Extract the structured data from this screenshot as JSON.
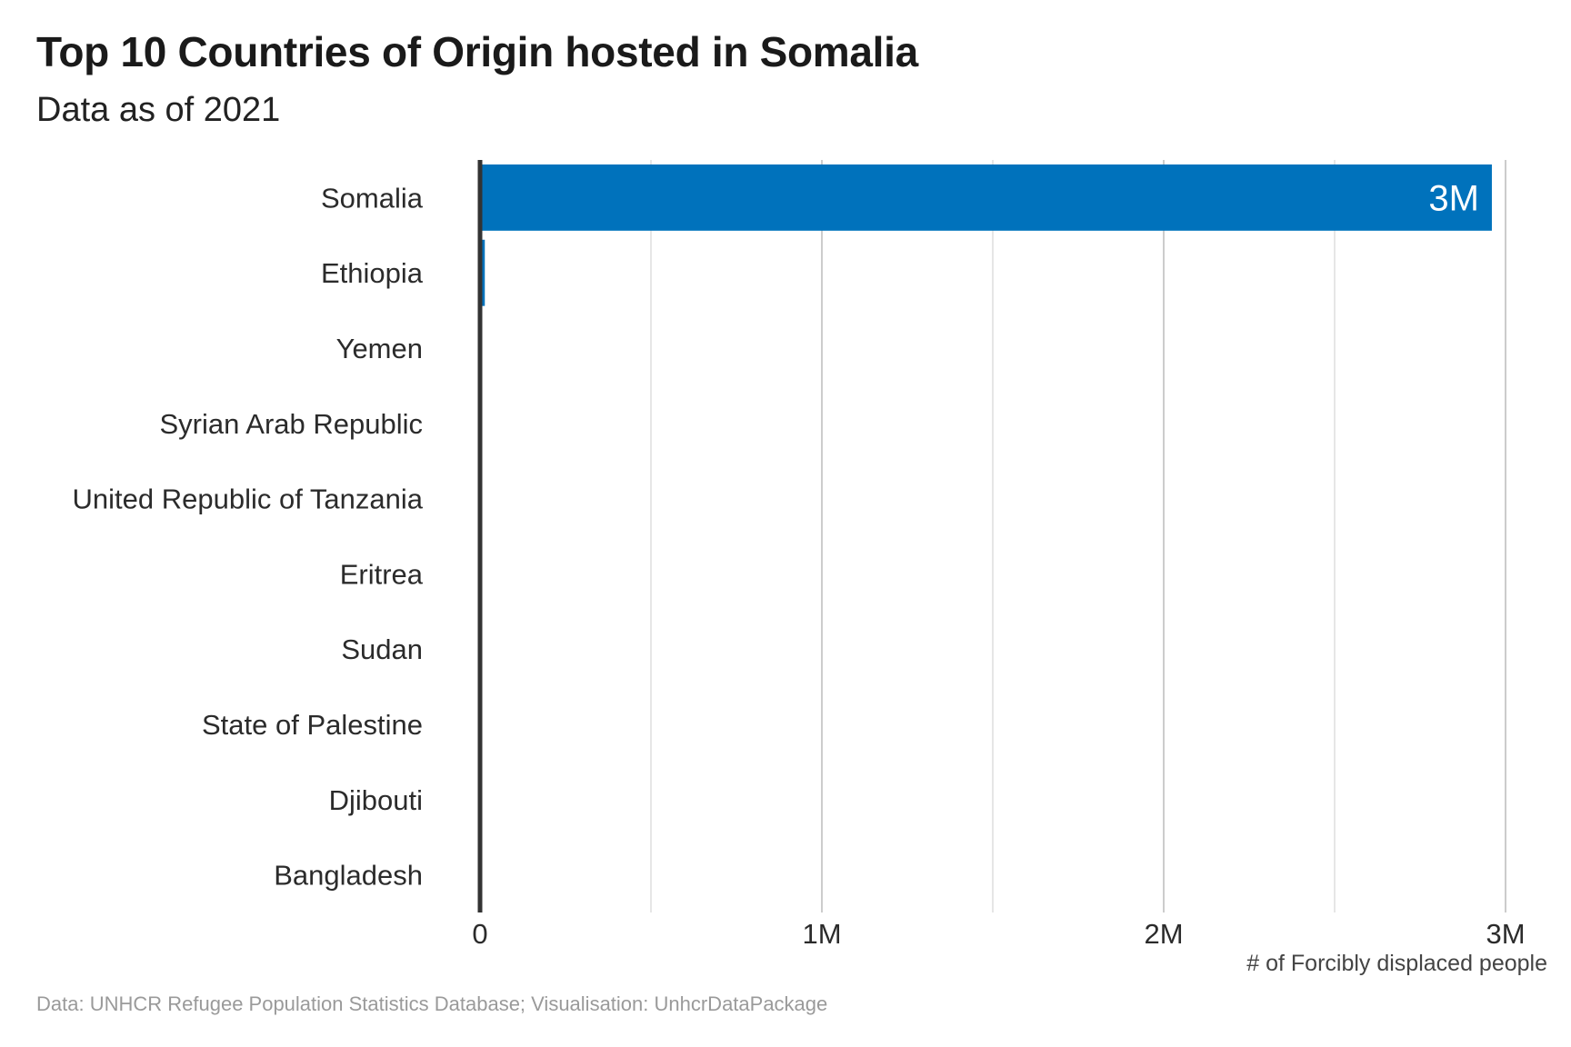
{
  "chart_data": {
    "type": "bar",
    "orientation": "horizontal",
    "title": "Top 10 Countries of Origin hosted in Somalia",
    "subtitle": "Data as of 2021",
    "categories": [
      "Somalia",
      "Ethiopia",
      "Yemen",
      "Syrian Arab Republic",
      "United Republic of Tanzania",
      "Eritrea",
      "Sudan",
      "State of Palestine",
      "Djibouti",
      "Bangladesh"
    ],
    "values": [
      2960000,
      14000,
      2000,
      400,
      200,
      150,
      100,
      60,
      30,
      10
    ],
    "data_labels": [
      "3M",
      "",
      "",
      "",
      "",
      "",
      "",
      "",
      "",
      ""
    ],
    "xlabel": "# of Forcibly displaced people",
    "ylabel": "",
    "xlim": [
      0,
      3000000
    ],
    "x_ticks": [
      0,
      1000000,
      2000000,
      3000000
    ],
    "x_tick_labels": [
      "0",
      "1M",
      "2M",
      "3M"
    ],
    "grid": "vertical",
    "bar_color": "#0072bc",
    "caption": "Data: UNHCR Refugee Population Statistics Database; Visualisation: UnhcrDataPackage"
  }
}
